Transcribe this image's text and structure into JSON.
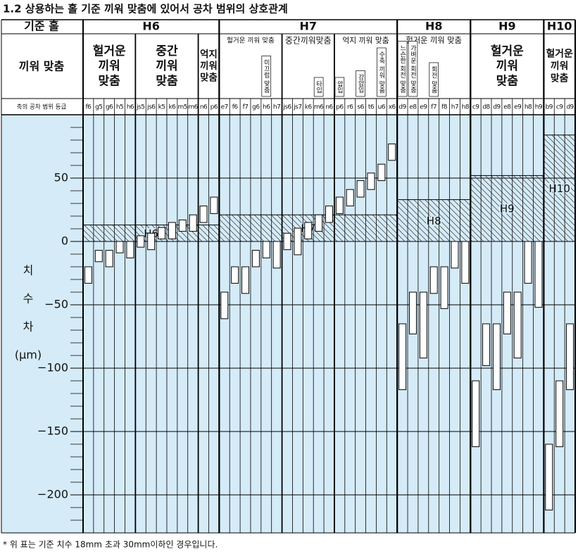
{
  "chart_data": {
    "type": "tolerance",
    "title": "1.2 상용하는 홀 기준 끼워 맞춤에 있어서 공차 범위의 상호관계",
    "hole_header": "기준 홀",
    "fit_header": "끼워 맞춤",
    "shaft_header": "축의 공차 범위 등급",
    "y_label": [
      "치",
      "수",
      "차",
      "(μm)"
    ],
    "footnote": "* 위 표는 기준 치수 18mm 초과 30mm이하인 경우입니다.",
    "ylim": [
      -230,
      100
    ],
    "yticks": [
      {
        "value": -200,
        "label": "−200"
      },
      {
        "value": -150,
        "label": "−150"
      },
      {
        "value": -100,
        "label": "−100"
      },
      {
        "value": -50,
        "label": "−50"
      },
      0,
      50
    ],
    "minor_yticks": [
      90,
      80,
      70,
      60,
      40,
      30,
      20,
      10,
      -10,
      -20,
      -30,
      -40,
      -60,
      -70,
      -80,
      -90,
      -110,
      -120,
      -130,
      -140,
      -160,
      -170,
      -180,
      -190,
      -210,
      -220
    ],
    "grid": true,
    "background": "#d5ebf8",
    "box_color": "#ffffff",
    "groups": [
      {
        "name": "H6",
        "hole": [
          0,
          13
        ],
        "fits": [
          {
            "label": [
              "헐거운",
              "끼워",
              "맞춤"
            ],
            "categories": [
              "f6",
              "g5",
              "g6",
              "h5",
              "h6"
            ],
            "upper": [
              -20,
              -7,
              -7,
              0,
              0
            ],
            "lower": [
              -33,
              -16,
              -20,
              -9,
              -13
            ]
          },
          {
            "label": [
              "중간",
              "끼워",
              "맞춤"
            ],
            "categories": [
              "js5",
              "js6",
              "k5",
              "k6",
              "m5",
              "m6"
            ],
            "upper": [
              4.5,
              6.5,
              11,
              15,
              17,
              21
            ],
            "lower": [
              -4.5,
              -6.5,
              2,
              2,
              8,
              8
            ]
          },
          {
            "label": [
              "억지",
              "끼워",
              "맞춤"
            ],
            "categories": [
              "n6",
              "p6"
            ],
            "upper": [
              28,
              35
            ],
            "lower": [
              15,
              22
            ]
          }
        ]
      },
      {
        "name": "H7",
        "hole": [
          0,
          21
        ],
        "fits": [
          {
            "label": [
              "헐거운 끼워 맞춤"
            ],
            "categories": [
              "e7",
              "f6",
              "f7",
              "g6",
              "h6",
              "h7"
            ],
            "upper": [
              -40,
              -20,
              -20,
              -7,
              0,
              0
            ],
            "lower": [
              -61,
              -33,
              -41,
              -20,
              -13,
              -21
            ],
            "notes": [
              null,
              null,
              null,
              null,
              "미끄럼 맞춤",
              null
            ]
          },
          {
            "label": [
              "중간끼워맞춤"
            ],
            "categories": [
              "js6",
              "js7",
              "k6",
              "m6",
              "n6"
            ],
            "upper": [
              6.5,
              10.5,
              15,
              21,
              28
            ],
            "lower": [
              -6.5,
              -10.5,
              2,
              8,
              15
            ],
            "notes": [
              null,
              null,
              null,
              "타입",
              null
            ]
          },
          {
            "label": [
              "억지 끼워 맞춤"
            ],
            "categories": [
              "p6",
              "r6",
              "s6",
              "t6",
              "u6",
              "x6"
            ],
            "upper": [
              35,
              41,
              48,
              54,
              61,
              77
            ],
            "lower": [
              22,
              28,
              35,
              41,
              48,
              64
            ],
            "notes": [
              "압입",
              null,
              "강압입",
              null,
              "수축 끼워 맞춤",
              null
            ]
          }
        ]
      },
      {
        "name": "H8",
        "hole": [
          0,
          33
        ],
        "fits": [
          {
            "label": [
              "헐거운 끼워 맞춤"
            ],
            "categories": [
              "d9",
              "e8",
              "e9",
              "f7",
              "f8",
              "h7",
              "h8"
            ],
            "upper": [
              -65,
              -40,
              -40,
              -20,
              -20,
              0,
              0
            ],
            "lower": [
              -117,
              -73,
              -92,
              -41,
              -53,
              -21,
              -33
            ],
            "notes": [
              "느슨한 회전 맞춤",
              "가벼운 회전 맞춤",
              null,
              "회전 맞춤",
              null,
              null,
              null
            ]
          }
        ]
      },
      {
        "name": "H9",
        "hole": [
          0,
          52
        ],
        "fits": [
          {
            "label": [
              "헐거운",
              "끼워",
              "맞춤"
            ],
            "categories": [
              "c9",
              "d8",
              "d9",
              "e8",
              "e9",
              "h8",
              "h9"
            ],
            "upper": [
              -110,
              -65,
              -65,
              -40,
              -40,
              0,
              0
            ],
            "lower": [
              -162,
              -98,
              -117,
              -73,
              -92,
              -33,
              -52
            ]
          }
        ]
      },
      {
        "name": "H10",
        "hole": [
          0,
          84
        ],
        "fits": [
          {
            "label": [
              "헐거운",
              "끼워",
              "맞춤"
            ],
            "categories": [
              "b9",
              "c9",
              "d9"
            ],
            "upper": [
              -160,
              -110,
              -65
            ],
            "lower": [
              -212,
              -162,
              -117
            ]
          }
        ]
      }
    ]
  }
}
